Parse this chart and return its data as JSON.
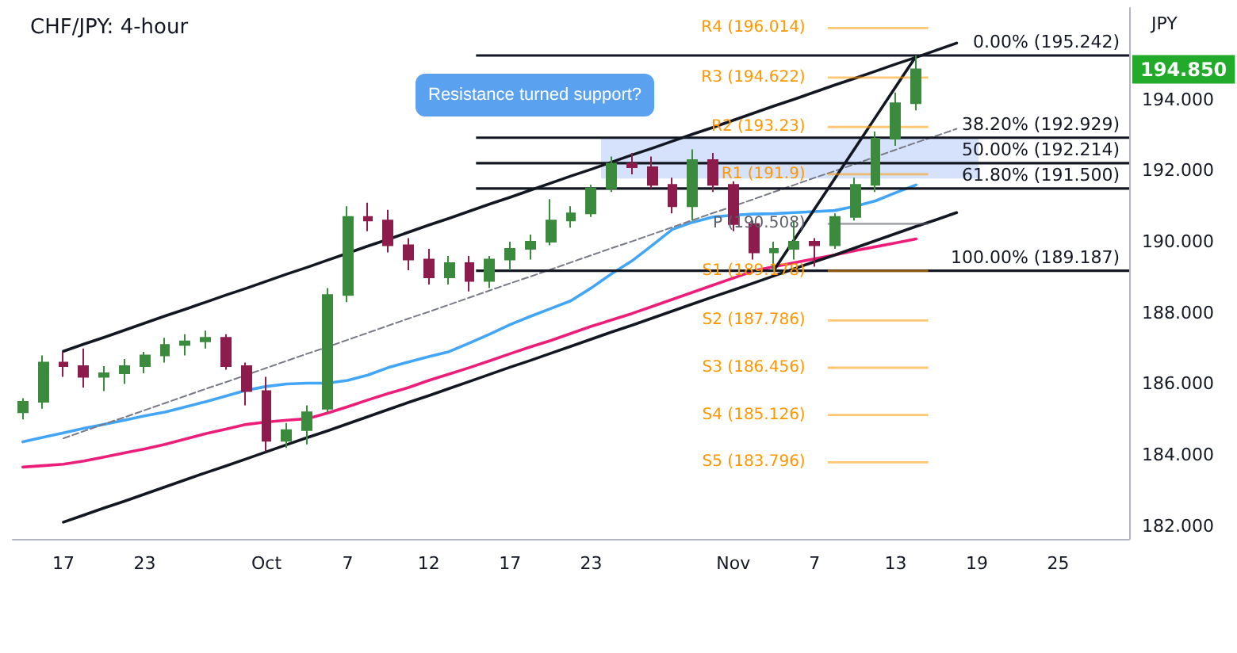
{
  "chart_data": {
    "type": "candlestick",
    "title": "CHF/JPY: 4-hour",
    "ylabel": "JPY",
    "categories": [
      null,
      null,
      "17",
      null,
      null,
      null,
      "23",
      null,
      null,
      null,
      null,
      null,
      "Oct",
      null,
      null,
      null,
      "7",
      null,
      null,
      null,
      "12",
      null,
      null,
      null,
      "17",
      null,
      null,
      null,
      "23",
      null,
      null,
      null,
      null,
      null,
      null,
      "Nov",
      null,
      null,
      null,
      "7",
      null,
      null,
      null,
      "13",
      null,
      null,
      null,
      "19",
      null,
      null,
      null,
      "25",
      null,
      null,
      null
    ],
    "ohlc": [
      [
        185.2,
        185.6,
        185.0,
        185.5
      ],
      [
        185.5,
        186.8,
        185.3,
        186.6
      ],
      [
        186.6,
        186.9,
        186.2,
        186.5
      ],
      [
        186.5,
        187.0,
        185.9,
        186.2
      ],
      [
        186.2,
        186.5,
        185.8,
        186.3
      ],
      [
        186.3,
        186.7,
        186.0,
        186.5
      ],
      [
        186.5,
        186.9,
        186.3,
        186.8
      ],
      [
        186.8,
        187.3,
        186.6,
        187.1
      ],
      [
        187.1,
        187.4,
        186.8,
        187.2
      ],
      [
        187.2,
        187.5,
        187.0,
        187.3
      ],
      [
        187.3,
        187.4,
        186.4,
        186.5
      ],
      [
        186.5,
        186.6,
        185.4,
        185.8
      ],
      [
        185.8,
        186.2,
        184.1,
        184.4
      ],
      [
        184.4,
        184.9,
        184.2,
        184.7
      ],
      [
        184.7,
        185.4,
        184.3,
        185.2
      ],
      [
        185.3,
        188.7,
        185.2,
        188.5
      ],
      [
        188.5,
        191.0,
        188.3,
        190.7
      ],
      [
        190.7,
        191.1,
        190.3,
        190.6
      ],
      [
        190.6,
        190.9,
        189.7,
        189.9
      ],
      [
        189.9,
        190.1,
        189.2,
        189.5
      ],
      [
        189.5,
        189.8,
        188.8,
        189.0
      ],
      [
        189.0,
        189.6,
        188.8,
        189.4
      ],
      [
        189.4,
        189.6,
        188.6,
        188.9
      ],
      [
        188.9,
        189.6,
        188.7,
        189.5
      ],
      [
        189.5,
        190.0,
        189.2,
        189.8
      ],
      [
        189.8,
        190.2,
        189.5,
        190.0
      ],
      [
        190.0,
        191.2,
        189.9,
        190.6
      ],
      [
        190.6,
        191.0,
        190.4,
        190.8
      ],
      [
        190.8,
        191.6,
        190.7,
        191.5
      ],
      [
        191.5,
        192.4,
        191.4,
        192.2
      ],
      [
        192.2,
        192.5,
        191.9,
        192.1
      ],
      [
        192.1,
        192.4,
        191.5,
        191.6
      ],
      [
        191.6,
        191.8,
        190.8,
        191.0
      ],
      [
        191.0,
        192.6,
        190.6,
        192.3
      ],
      [
        192.3,
        192.5,
        191.4,
        191.6
      ],
      [
        191.6,
        191.7,
        190.3,
        190.5
      ],
      [
        190.5,
        190.6,
        189.5,
        189.7
      ],
      [
        189.7,
        190.0,
        189.2,
        189.8
      ],
      [
        189.8,
        190.6,
        189.5,
        190.0
      ],
      [
        190.0,
        190.1,
        189.3,
        189.9
      ],
      [
        189.9,
        190.8,
        189.8,
        190.7
      ],
      [
        190.7,
        191.8,
        190.6,
        191.6
      ],
      [
        191.6,
        193.1,
        191.4,
        192.9
      ],
      [
        192.9,
        194.2,
        192.7,
        193.9
      ],
      [
        193.9,
        195.242,
        193.7,
        194.85
      ],
      null,
      null,
      null,
      null,
      null,
      null,
      null,
      null,
      null,
      null
    ],
    "colors": [
      "#3b8a3e",
      "#3b8a3e",
      "#8b1c4c",
      "#8b1c4c",
      "#3b8a3e",
      "#3b8a3e",
      "#3b8a3e",
      "#3b8a3e",
      "#3b8a3e",
      "#3b8a3e",
      "#8b1c4c",
      "#8b1c4c",
      "#8b1c4c",
      "#3b8a3e",
      "#3b8a3e",
      "#3b8a3e",
      "#3b8a3e",
      "#8b1c4c",
      "#8b1c4c",
      "#8b1c4c",
      "#8b1c4c",
      "#3b8a3e",
      "#8b1c4c",
      "#3b8a3e",
      "#3b8a3e",
      "#3b8a3e",
      "#3b8a3e",
      "#3b8a3e",
      "#3b8a3e",
      "#3b8a3e",
      "#8b1c4c",
      "#8b1c4c",
      "#8b1c4c",
      "#3b8a3e",
      "#8b1c4c",
      "#8b1c4c",
      "#8b1c4c",
      "#3b8a3e",
      "#3b8a3e",
      "#8b1c4c",
      "#3b8a3e",
      "#3b8a3e",
      "#3b8a3e",
      "#3b8a3e",
      "#3b8a3e",
      null,
      null,
      null,
      null,
      null,
      null,
      null,
      null,
      null,
      null
    ],
    "marker": "none",
    "series": [
      {
        "type": "line",
        "color": "#42a5f5",
        "values": [
          184.37,
          184.5,
          184.62,
          184.75,
          184.86,
          184.98,
          185.1,
          185.21,
          185.35,
          185.5,
          185.66,
          185.82,
          185.93,
          186.0,
          186.02,
          186.02,
          186.1,
          186.25,
          186.46,
          186.62,
          186.77,
          186.91,
          187.15,
          187.4,
          187.67,
          187.9,
          188.12,
          188.34,
          188.7,
          189.1,
          189.46,
          189.9,
          190.35,
          190.55,
          190.7,
          190.75,
          190.78,
          190.79,
          190.82,
          190.85,
          190.88,
          191.0,
          191.15,
          191.38,
          191.6,
          null,
          null,
          null,
          null,
          null,
          null,
          null,
          null,
          null,
          null
        ]
      },
      {
        "type": "line",
        "color": "#ec1e79",
        "values": [
          183.66,
          183.7,
          183.74,
          183.83,
          183.94,
          184.06,
          184.17,
          184.3,
          184.45,
          184.6,
          184.73,
          184.86,
          184.93,
          184.98,
          185.02,
          185.18,
          185.36,
          185.55,
          185.73,
          185.9,
          186.1,
          186.28,
          186.46,
          186.65,
          186.85,
          187.04,
          187.22,
          187.42,
          187.62,
          187.8,
          187.98,
          188.18,
          188.38,
          188.58,
          188.78,
          188.98,
          189.18,
          189.3,
          189.41,
          189.52,
          189.63,
          189.75,
          189.86,
          189.97,
          190.08,
          null,
          null,
          null,
          null,
          null,
          null,
          null,
          null,
          null,
          null
        ]
      },
      {
        "type": "line",
        "color": "#131722",
        "values": [
          null,
          null,
          186.92,
          187.12,
          187.31,
          187.51,
          187.71,
          187.91,
          188.1,
          188.3,
          188.5,
          188.69,
          188.89,
          189.09,
          189.28,
          189.48,
          189.68,
          189.88,
          190.07,
          190.27,
          190.47,
          190.66,
          190.86,
          191.06,
          191.25,
          191.45,
          191.65,
          191.85,
          192.04,
          192.24,
          192.44,
          192.63,
          192.83,
          193.03,
          193.22,
          193.42,
          193.62,
          193.82,
          194.01,
          194.21,
          194.41,
          194.6,
          194.8,
          195.0,
          195.19,
          195.39,
          195.59,
          null,
          null,
          null,
          null,
          null,
          null,
          null,
          null
        ]
      },
      {
        "type": "line",
        "color": "#131722",
        "values": [
          null,
          null,
          182.11,
          182.31,
          182.51,
          182.7,
          182.9,
          183.1,
          183.3,
          183.5,
          183.69,
          183.89,
          184.09,
          184.29,
          184.49,
          184.68,
          184.88,
          185.08,
          185.28,
          185.48,
          185.67,
          185.87,
          186.07,
          186.27,
          186.47,
          186.66,
          186.86,
          187.06,
          187.26,
          187.46,
          187.65,
          187.85,
          188.05,
          188.25,
          188.45,
          188.64,
          188.84,
          189.04,
          189.24,
          189.44,
          189.63,
          189.83,
          190.03,
          190.23,
          190.43,
          190.62,
          190.82,
          null,
          null,
          null,
          null,
          null,
          null,
          null,
          null
        ]
      },
      {
        "type": "line",
        "color": "#787b86",
        "line_style": "dashed",
        "values": [
          null,
          null,
          184.47,
          184.67,
          184.87,
          185.06,
          185.26,
          185.46,
          185.66,
          185.86,
          186.05,
          186.25,
          186.45,
          186.65,
          186.85,
          187.04,
          187.24,
          187.44,
          187.64,
          187.84,
          188.03,
          188.23,
          188.43,
          188.63,
          188.83,
          189.02,
          189.22,
          189.42,
          189.62,
          189.82,
          190.01,
          190.21,
          190.41,
          190.61,
          190.81,
          191.0,
          191.2,
          191.4,
          191.6,
          191.8,
          191.99,
          192.19,
          192.39,
          192.59,
          192.79,
          192.98,
          193.18,
          null,
          null,
          null,
          null,
          null,
          null,
          null,
          null
        ]
      },
      {
        "type": "line",
        "color": "#131722",
        "values": [
          null,
          null,
          null,
          null,
          null,
          null,
          null,
          null,
          null,
          null,
          null,
          null,
          null,
          null,
          null,
          null,
          null,
          null,
          null,
          null,
          null,
          null,
          null,
          null,
          null,
          null,
          null,
          null,
          null,
          null,
          null,
          null,
          null,
          null,
          null,
          null,
          null,
          189.2,
          190.06,
          190.92,
          191.78,
          192.64,
          193.5,
          194.36,
          195.22,
          null,
          null,
          null,
          null,
          null,
          null,
          null,
          null,
          null,
          null
        ]
      }
    ],
    "ylim": [
      181.64,
      196.58
    ],
    "yticks": [
      {
        "value": 182,
        "label": "182.000"
      },
      {
        "value": 184,
        "label": "184.000"
      },
      {
        "value": 186,
        "label": "186.000"
      },
      {
        "value": 188,
        "label": "188.000"
      },
      {
        "value": 190,
        "label": "190.000"
      },
      {
        "value": 192,
        "label": "192.000"
      },
      {
        "value": 194,
        "label": "194.000"
      }
    ],
    "ref_lines": [
      {
        "axis": "y",
        "value": 195.242,
        "label": "0.00% (195.242)",
        "color": "#131722"
      },
      {
        "axis": "y",
        "value": 192.929,
        "label": "38.20% (192.929)",
        "color": "#131722"
      },
      {
        "axis": "y",
        "value": 192.214,
        "label": "50.00% (192.214)",
        "color": "#131722"
      },
      {
        "axis": "y",
        "value": 191.5,
        "label": "61.80% (191.500)",
        "color": "#131722"
      },
      {
        "axis": "y",
        "value": 189.187,
        "label": "100.00% (189.187)",
        "color": "#131722"
      },
      {
        "axis": "y",
        "value": 196.014,
        "label": "R4 (196.014)",
        "color": "#ff9800"
      },
      {
        "axis": "y",
        "value": 194.622,
        "label": "R3 (194.622)",
        "color": "#ff9800"
      },
      {
        "axis": "y",
        "value": 193.23,
        "label": "R2 (193.23)",
        "color": "#ff9800"
      },
      {
        "axis": "y",
        "value": 191.9,
        "label": "R1 (191.9)",
        "color": "#ff9800"
      },
      {
        "axis": "y",
        "value": 190.508,
        "label": "P (190.508)",
        "color": "#5d606b"
      },
      {
        "axis": "y",
        "value": 189.178,
        "label": "S1 (189.178)",
        "color": "#ff9800"
      },
      {
        "axis": "y",
        "value": 187.786,
        "label": "S2 (187.786)",
        "color": "#ff9800"
      },
      {
        "axis": "y",
        "value": 186.456,
        "label": "S3 (186.456)",
        "color": "#ff9800"
      },
      {
        "axis": "y",
        "value": 185.126,
        "label": "S4 (185.126)",
        "color": "#ff9800"
      },
      {
        "axis": "y",
        "value": 183.796,
        "label": "S5 (183.796)",
        "color": "#ff9800"
      }
    ],
    "bands": [
      {
        "axis": "y",
        "from": 191.78,
        "to": 192.9,
        "color": "#d6e2fb"
      }
    ],
    "annotations": [
      "Resistance turned support?",
      "194.850"
    ]
  }
}
